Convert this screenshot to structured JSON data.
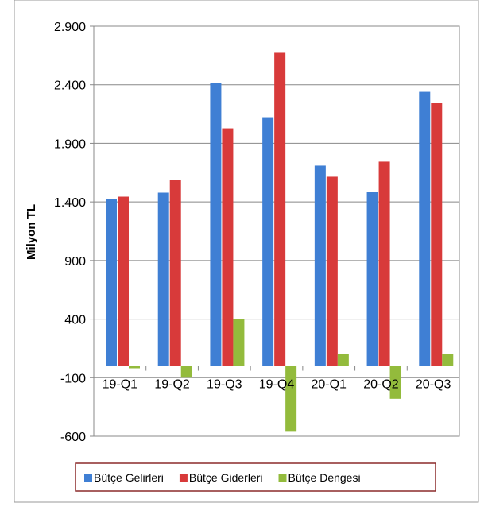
{
  "chart_data": {
    "type": "bar",
    "ylabel": "Milyon TL",
    "categories": [
      "19-Q1",
      "19-Q2",
      "19-Q3",
      "19-Q4",
      "20-Q1",
      "20-Q2",
      "20-Q3"
    ],
    "series": [
      {
        "name": "Bütçe Gelirleri",
        "color": "#3f7fd4",
        "values": [
          1425,
          1479,
          2415,
          2123,
          1710,
          1486,
          2340
        ]
      },
      {
        "name": "Bütçe Giderleri",
        "color": "#d83a3a",
        "values": [
          1445,
          1588,
          2028,
          2673,
          1615,
          1744,
          2246
        ]
      },
      {
        "name": "Bütçe Dengesi",
        "color": "#93bb3c",
        "values": [
          -20,
          -100,
          400,
          -555,
          100,
          -280,
          100
        ]
      }
    ],
    "ylim": [
      -600,
      2900
    ],
    "yticks": [
      {
        "value": -600,
        "label": "-600"
      },
      {
        "value": -100,
        "label": "-100"
      },
      400,
      900,
      {
        "value": 1400,
        "label": "1.400"
      },
      {
        "value": 1900,
        "label": "1.900"
      },
      {
        "value": 2400,
        "label": "2.400"
      },
      {
        "value": 2900,
        "label": "2.900"
      }
    ],
    "grid": true,
    "legend": "bottom"
  }
}
